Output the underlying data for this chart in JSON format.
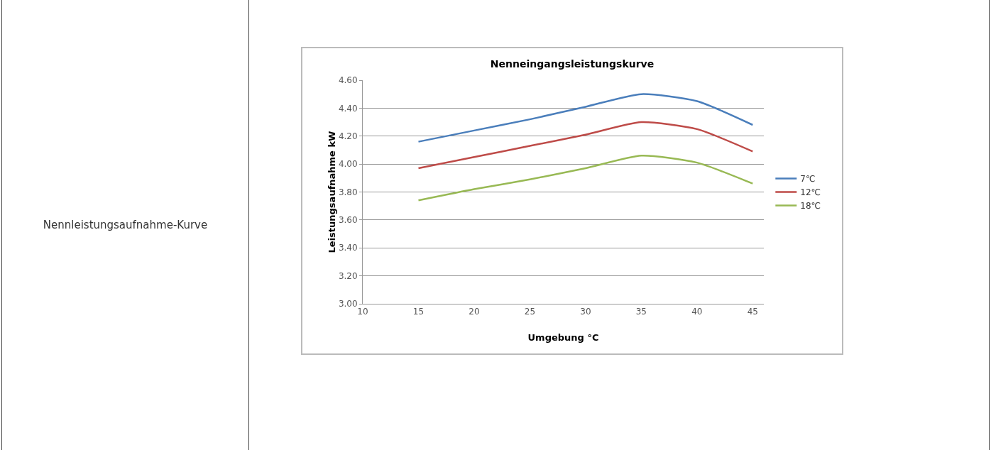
{
  "chart_data": {
    "type": "line",
    "title": "Nenneingangsleistungskurve",
    "xlabel": "Umgebung °C",
    "ylabel": "Leistungsaufnahme kW",
    "annotations": [
      "Nennleistungsaufnahme-Kurve"
    ],
    "x": [
      15,
      20,
      25,
      30,
      35,
      40,
      45
    ],
    "series": [
      {
        "name": "7℃",
        "color": "#4a7ebb",
        "values": [
          4.16,
          4.24,
          4.32,
          4.41,
          4.5,
          4.45,
          4.28
        ]
      },
      {
        "name": "12℃",
        "color": "#be4b48",
        "values": [
          3.97,
          4.05,
          4.13,
          4.21,
          4.3,
          4.25,
          4.09
        ]
      },
      {
        "name": "18℃",
        "color": "#98b954",
        "values": [
          3.74,
          3.82,
          3.89,
          3.97,
          4.06,
          4.01,
          3.86
        ]
      }
    ],
    "xlim": [
      10,
      46
    ],
    "xticks": [
      10,
      15,
      20,
      25,
      30,
      35,
      40,
      45
    ],
    "ylim": [
      3.0,
      4.6
    ],
    "yticks": [
      {
        "value": 3.0,
        "label": "3.00"
      },
      {
        "value": 3.2,
        "label": "3.20"
      },
      {
        "value": 3.4,
        "label": "3.40"
      },
      {
        "value": 3.6,
        "label": "3.60"
      },
      {
        "value": 3.8,
        "label": "3.80"
      },
      {
        "value": 4.0,
        "label": "4.00"
      },
      {
        "value": 4.2,
        "label": "4.20"
      },
      {
        "value": 4.4,
        "label": "4.40"
      },
      {
        "value": 4.6,
        "label": "4.60"
      }
    ],
    "grid": "y",
    "legend": "right",
    "marker": "none",
    "line_style": "solid"
  }
}
